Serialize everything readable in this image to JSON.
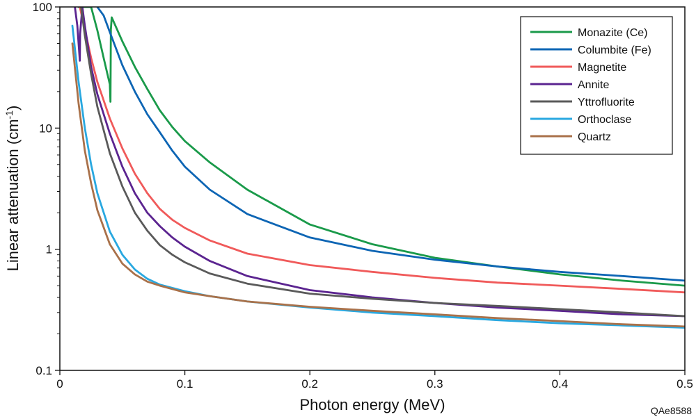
{
  "chart_data": {
    "type": "line",
    "xlabel": "Photon energy (MeV)",
    "ylabel": "Linear attenuation (cm",
    "ylabel_superscript": "-1",
    "ylabel_close": ")",
    "xlim": [
      0,
      0.5
    ],
    "ylim": [
      0.1,
      100
    ],
    "yscale": "log",
    "x_ticks": [
      0,
      0.1,
      0.2,
      0.3,
      0.4,
      0.5
    ],
    "x_tick_labels": [
      "0",
      "0.1",
      "0.2",
      "0.3",
      "0.4",
      "0.5"
    ],
    "y_ticks": [
      0.1,
      1,
      10,
      100
    ],
    "y_tick_labels": [
      "0.1",
      "1",
      "10",
      "100"
    ],
    "legend_position": "top-right",
    "figure_id": "QAe8588",
    "series": [
      {
        "name": "Monazite (Ce)",
        "color": "#1a9a4a",
        "points": [
          [
            0.015,
            100
          ],
          [
            0.02,
            100
          ],
          [
            0.025,
            100
          ],
          [
            0.03,
            64
          ],
          [
            0.035,
            38
          ],
          [
            0.04,
            23
          ],
          [
            0.0405,
            16.5
          ],
          [
            0.0408,
            65
          ],
          [
            0.0415,
            82
          ],
          [
            0.045,
            68
          ],
          [
            0.05,
            52
          ],
          [
            0.06,
            32
          ],
          [
            0.07,
            21
          ],
          [
            0.08,
            14
          ],
          [
            0.09,
            10.2
          ],
          [
            0.1,
            7.8
          ],
          [
            0.12,
            5.2
          ],
          [
            0.15,
            3.1
          ],
          [
            0.2,
            1.6
          ],
          [
            0.25,
            1.1
          ],
          [
            0.3,
            0.85
          ],
          [
            0.35,
            0.72
          ],
          [
            0.4,
            0.62
          ],
          [
            0.45,
            0.55
          ],
          [
            0.5,
            0.5
          ]
        ]
      },
      {
        "name": "Columbite (Fe)",
        "color": "#0d65b4",
        "points": [
          [
            0.03,
            100
          ],
          [
            0.035,
            85
          ],
          [
            0.04,
            62
          ],
          [
            0.05,
            33
          ],
          [
            0.06,
            20
          ],
          [
            0.07,
            13
          ],
          [
            0.08,
            9.2
          ],
          [
            0.09,
            6.5
          ],
          [
            0.1,
            4.8
          ],
          [
            0.12,
            3.1
          ],
          [
            0.15,
            1.95
          ],
          [
            0.2,
            1.25
          ],
          [
            0.25,
            0.97
          ],
          [
            0.3,
            0.82
          ],
          [
            0.35,
            0.72
          ],
          [
            0.4,
            0.65
          ],
          [
            0.45,
            0.6
          ],
          [
            0.5,
            0.55
          ]
        ]
      },
      {
        "name": "Magnetite",
        "color": "#f05a5a",
        "points": [
          [
            0.016,
            100
          ],
          [
            0.02,
            65
          ],
          [
            0.025,
            38
          ],
          [
            0.03,
            24
          ],
          [
            0.04,
            12
          ],
          [
            0.05,
            6.8
          ],
          [
            0.06,
            4.2
          ],
          [
            0.07,
            2.9
          ],
          [
            0.08,
            2.15
          ],
          [
            0.09,
            1.75
          ],
          [
            0.1,
            1.5
          ],
          [
            0.12,
            1.18
          ],
          [
            0.15,
            0.92
          ],
          [
            0.2,
            0.74
          ],
          [
            0.25,
            0.65
          ],
          [
            0.3,
            0.58
          ],
          [
            0.35,
            0.53
          ],
          [
            0.4,
            0.5
          ],
          [
            0.45,
            0.47
          ],
          [
            0.5,
            0.44
          ]
        ]
      },
      {
        "name": "Annite",
        "color": "#5b2490",
        "points": [
          [
            0.012,
            100
          ],
          [
            0.014,
            70
          ],
          [
            0.016,
            36
          ],
          [
            0.0162,
            60
          ],
          [
            0.018,
            100
          ],
          [
            0.02,
            70
          ],
          [
            0.025,
            32
          ],
          [
            0.03,
            19
          ],
          [
            0.04,
            9
          ],
          [
            0.05,
            4.8
          ],
          [
            0.06,
            2.9
          ],
          [
            0.07,
            2.0
          ],
          [
            0.08,
            1.55
          ],
          [
            0.09,
            1.25
          ],
          [
            0.1,
            1.05
          ],
          [
            0.12,
            0.8
          ],
          [
            0.15,
            0.6
          ],
          [
            0.2,
            0.46
          ],
          [
            0.25,
            0.4
          ],
          [
            0.3,
            0.36
          ],
          [
            0.35,
            0.33
          ],
          [
            0.4,
            0.31
          ],
          [
            0.45,
            0.29
          ],
          [
            0.5,
            0.28
          ]
        ]
      },
      {
        "name": "Yttrofluorite",
        "color": "#5a5a5a",
        "points": [
          [
            0.017,
            100
          ],
          [
            0.02,
            58
          ],
          [
            0.025,
            28
          ],
          [
            0.03,
            15
          ],
          [
            0.04,
            6.2
          ],
          [
            0.05,
            3.3
          ],
          [
            0.06,
            2.0
          ],
          [
            0.07,
            1.42
          ],
          [
            0.08,
            1.08
          ],
          [
            0.09,
            0.9
          ],
          [
            0.1,
            0.78
          ],
          [
            0.12,
            0.63
          ],
          [
            0.15,
            0.52
          ],
          [
            0.2,
            0.43
          ],
          [
            0.25,
            0.39
          ],
          [
            0.3,
            0.36
          ],
          [
            0.35,
            0.34
          ],
          [
            0.4,
            0.32
          ],
          [
            0.45,
            0.3
          ],
          [
            0.5,
            0.28
          ]
        ]
      },
      {
        "name": "Orthoclase",
        "color": "#29a8e0",
        "points": [
          [
            0.01,
            70
          ],
          [
            0.015,
            24
          ],
          [
            0.02,
            10
          ],
          [
            0.025,
            5
          ],
          [
            0.03,
            2.9
          ],
          [
            0.04,
            1.4
          ],
          [
            0.05,
            0.9
          ],
          [
            0.06,
            0.68
          ],
          [
            0.07,
            0.57
          ],
          [
            0.08,
            0.51
          ],
          [
            0.1,
            0.45
          ],
          [
            0.12,
            0.41
          ],
          [
            0.15,
            0.37
          ],
          [
            0.2,
            0.33
          ],
          [
            0.25,
            0.3
          ],
          [
            0.3,
            0.28
          ],
          [
            0.35,
            0.26
          ],
          [
            0.4,
            0.245
          ],
          [
            0.45,
            0.235
          ],
          [
            0.5,
            0.225
          ]
        ]
      },
      {
        "name": "Quartz",
        "color": "#a9714a",
        "points": [
          [
            0.01,
            50
          ],
          [
            0.015,
            16
          ],
          [
            0.02,
            6.5
          ],
          [
            0.025,
            3.5
          ],
          [
            0.03,
            2.1
          ],
          [
            0.04,
            1.1
          ],
          [
            0.05,
            0.76
          ],
          [
            0.06,
            0.62
          ],
          [
            0.07,
            0.54
          ],
          [
            0.08,
            0.5
          ],
          [
            0.1,
            0.44
          ],
          [
            0.12,
            0.41
          ],
          [
            0.15,
            0.37
          ],
          [
            0.2,
            0.335
          ],
          [
            0.25,
            0.31
          ],
          [
            0.3,
            0.29
          ],
          [
            0.35,
            0.27
          ],
          [
            0.4,
            0.255
          ],
          [
            0.45,
            0.24
          ],
          [
            0.5,
            0.23
          ]
        ]
      }
    ]
  }
}
